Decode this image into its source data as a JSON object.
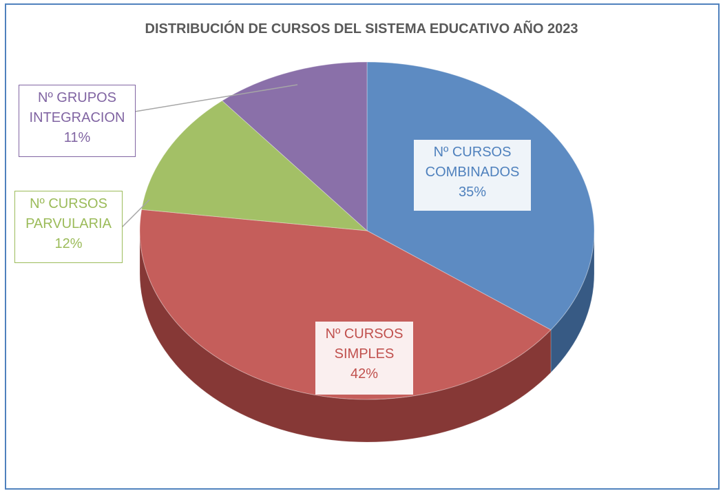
{
  "chart_data": {
    "type": "pie",
    "title": "DISTRIBUCIÓN DE CURSOS DEL SISTEMA EDUCATIVO AÑO 2023",
    "categories": [
      "Nº CURSOS COMBINADOS",
      "Nº CURSOS SIMPLES",
      "Nº CURSOS PARVULARIA",
      "Nº GRUPOS INTEGRACION"
    ],
    "values": [
      35,
      42,
      12,
      11
    ],
    "value_labels": [
      "35%",
      "42%",
      "12%",
      "11%"
    ],
    "colors": [
      "#4f81bd",
      "#c0504d",
      "#9bbb59",
      "#8064a2"
    ]
  }
}
